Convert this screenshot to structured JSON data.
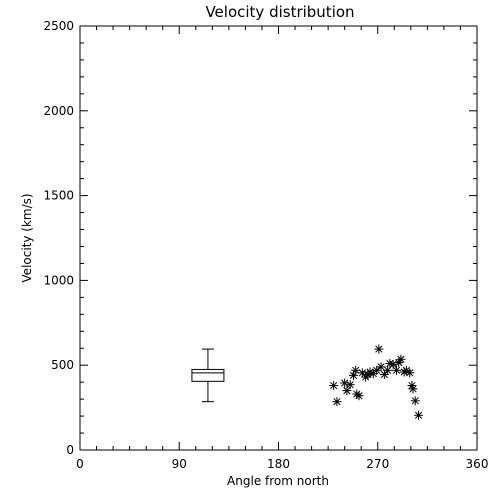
{
  "chart_data": {
    "type": "scatter",
    "title": "Velocity distribution",
    "xlabel": "Angle from north",
    "ylabel": "Velocity (km/s)",
    "xlim": [
      0,
      360
    ],
    "ylim": [
      0,
      2500
    ],
    "x_ticks": [
      "0",
      "90",
      "180",
      "270",
      "360"
    ],
    "y_ticks": [
      "0",
      "500",
      "1000",
      "1500",
      "2000",
      "2500"
    ],
    "grid": false,
    "boxplot": {
      "x": 116,
      "min": 285,
      "q1": 405,
      "median": 455,
      "q3": 475,
      "max": 595
    },
    "points": [
      {
        "x": 230,
        "y": 380
      },
      {
        "x": 233,
        "y": 285
      },
      {
        "x": 240,
        "y": 395
      },
      {
        "x": 242,
        "y": 350
      },
      {
        "x": 245,
        "y": 385
      },
      {
        "x": 248,
        "y": 440
      },
      {
        "x": 250,
        "y": 470
      },
      {
        "x": 251,
        "y": 330
      },
      {
        "x": 253,
        "y": 320
      },
      {
        "x": 256,
        "y": 455
      },
      {
        "x": 259,
        "y": 430
      },
      {
        "x": 261,
        "y": 445
      },
      {
        "x": 263,
        "y": 460
      },
      {
        "x": 266,
        "y": 450
      },
      {
        "x": 269,
        "y": 470
      },
      {
        "x": 271,
        "y": 595
      },
      {
        "x": 273,
        "y": 490
      },
      {
        "x": 276,
        "y": 445
      },
      {
        "x": 279,
        "y": 470
      },
      {
        "x": 281,
        "y": 510
      },
      {
        "x": 284,
        "y": 505
      },
      {
        "x": 287,
        "y": 470
      },
      {
        "x": 289,
        "y": 515
      },
      {
        "x": 291,
        "y": 535
      },
      {
        "x": 294,
        "y": 460
      },
      {
        "x": 296,
        "y": 470
      },
      {
        "x": 299,
        "y": 455
      },
      {
        "x": 301,
        "y": 380
      },
      {
        "x": 302,
        "y": 360
      },
      {
        "x": 304,
        "y": 290
      },
      {
        "x": 307,
        "y": 205
      }
    ]
  }
}
